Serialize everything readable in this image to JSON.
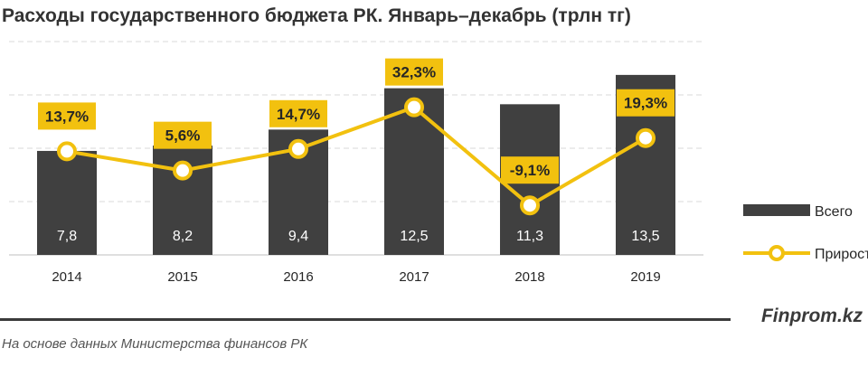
{
  "title": "Расходы государственного бюджета РК. Январь–декабрь (трлн тг)",
  "source_note": "На основе данных Министерства финансов РК",
  "brand": "Finprom.kz",
  "colors": {
    "bar": "#404040",
    "line": "#F2C10F",
    "label_bg": "#F2C10F",
    "grid": "#d9d9d9"
  },
  "chart_data": {
    "type": "bar",
    "categories": [
      "2014",
      "2015",
      "2016",
      "2017",
      "2018",
      "2019"
    ],
    "series": [
      {
        "name": "Всего",
        "type": "bar",
        "values": [
          7.8,
          8.2,
          9.4,
          12.5,
          11.3,
          13.5
        ],
        "labels": [
          "7,8",
          "8,2",
          "9,4",
          "12,5",
          "11,3",
          "13,5"
        ]
      },
      {
        "name": "Прирост",
        "type": "line",
        "values": [
          13.7,
          5.6,
          14.7,
          32.3,
          -9.1,
          19.3
        ],
        "labels": [
          "13,7%",
          "5,6%",
          "14,7%",
          "32,3%",
          "-9,1%",
          "19,3%"
        ]
      }
    ],
    "ylim": [
      0,
      16
    ],
    "y2lim": [
      -30,
      60
    ],
    "grid": true,
    "legend_position": "right"
  }
}
